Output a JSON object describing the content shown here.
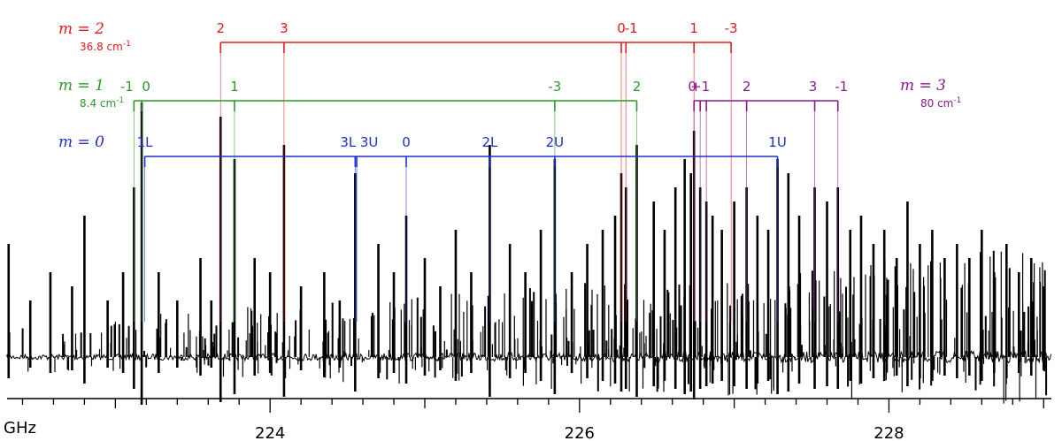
{
  "chart_data": {
    "type": "line",
    "title": "",
    "xlabel": "GHz",
    "ylabel": "",
    "xlim": [
      222.3,
      229.05
    ],
    "ylim": [
      -1.0,
      1.0
    ],
    "grid": false,
    "x_ticks": [
      {
        "value": 224,
        "label": "224"
      },
      {
        "value": 226,
        "label": "226"
      },
      {
        "value": 228,
        "label": "228"
      }
    ],
    "spectrum_lines": [
      {
        "x": 222.31,
        "y": 0.4
      },
      {
        "x": 222.45,
        "y": 0.2
      },
      {
        "x": 222.58,
        "y": 0.3
      },
      {
        "x": 222.72,
        "y": 0.25
      },
      {
        "x": 222.8,
        "y": 0.5
      },
      {
        "x": 222.95,
        "y": 0.2
      },
      {
        "x": 223.05,
        "y": 0.3
      },
      {
        "x": 223.12,
        "y": 0.6
      },
      {
        "x": 223.17,
        "y": 0.9
      },
      {
        "x": 223.28,
        "y": 0.3
      },
      {
        "x": 223.4,
        "y": 0.2
      },
      {
        "x": 223.55,
        "y": 0.35
      },
      {
        "x": 223.62,
        "y": 0.2
      },
      {
        "x": 223.68,
        "y": 0.85
      },
      {
        "x": 223.77,
        "y": 0.7
      },
      {
        "x": 223.9,
        "y": 0.35
      },
      {
        "x": 224.0,
        "y": 0.3
      },
      {
        "x": 224.09,
        "y": 0.75
      },
      {
        "x": 224.2,
        "y": 0.25
      },
      {
        "x": 224.35,
        "y": 0.3
      },
      {
        "x": 224.45,
        "y": 0.2
      },
      {
        "x": 224.55,
        "y": 0.65
      },
      {
        "x": 224.7,
        "y": 0.4
      },
      {
        "x": 224.8,
        "y": 0.3
      },
      {
        "x": 224.88,
        "y": 0.5
      },
      {
        "x": 225.0,
        "y": 0.35
      },
      {
        "x": 225.1,
        "y": 0.25
      },
      {
        "x": 225.2,
        "y": 0.45
      },
      {
        "x": 225.3,
        "y": 0.3
      },
      {
        "x": 225.42,
        "y": 0.75
      },
      {
        "x": 225.55,
        "y": 0.4
      },
      {
        "x": 225.65,
        "y": 0.3
      },
      {
        "x": 225.75,
        "y": 0.45
      },
      {
        "x": 225.84,
        "y": 0.7
      },
      {
        "x": 225.95,
        "y": 0.3
      },
      {
        "x": 226.05,
        "y": 0.4
      },
      {
        "x": 226.15,
        "y": 0.45
      },
      {
        "x": 226.23,
        "y": 0.5
      },
      {
        "x": 226.27,
        "y": 0.65
      },
      {
        "x": 226.3,
        "y": 0.6
      },
      {
        "x": 226.37,
        "y": 0.75
      },
      {
        "x": 226.48,
        "y": 0.55
      },
      {
        "x": 226.55,
        "y": 0.45
      },
      {
        "x": 226.62,
        "y": 0.6
      },
      {
        "x": 226.68,
        "y": 0.7
      },
      {
        "x": 226.72,
        "y": 0.65
      },
      {
        "x": 226.74,
        "y": 0.8
      },
      {
        "x": 226.78,
        "y": 0.6
      },
      {
        "x": 226.82,
        "y": 0.55
      },
      {
        "x": 226.86,
        "y": 0.5
      },
      {
        "x": 226.92,
        "y": 0.45
      },
      {
        "x": 227.0,
        "y": 0.55
      },
      {
        "x": 227.08,
        "y": 0.6
      },
      {
        "x": 227.15,
        "y": 0.5
      },
      {
        "x": 227.22,
        "y": 0.45
      },
      {
        "x": 227.28,
        "y": 0.7
      },
      {
        "x": 227.35,
        "y": 0.65
      },
      {
        "x": 227.42,
        "y": 0.5
      },
      {
        "x": 227.52,
        "y": 0.6
      },
      {
        "x": 227.6,
        "y": 0.55
      },
      {
        "x": 227.67,
        "y": 0.6
      },
      {
        "x": 227.75,
        "y": 0.45
      },
      {
        "x": 227.82,
        "y": 0.5
      },
      {
        "x": 227.9,
        "y": 0.4
      },
      {
        "x": 227.97,
        "y": 0.45
      },
      {
        "x": 228.05,
        "y": 0.35
      },
      {
        "x": 228.12,
        "y": 0.55
      },
      {
        "x": 228.2,
        "y": 0.4
      },
      {
        "x": 228.28,
        "y": 0.45
      },
      {
        "x": 228.36,
        "y": 0.35
      },
      {
        "x": 228.44,
        "y": 0.4
      },
      {
        "x": 228.52,
        "y": 0.35
      },
      {
        "x": 228.6,
        "y": 0.45
      },
      {
        "x": 228.68,
        "y": 0.3
      },
      {
        "x": 228.76,
        "y": 0.4
      },
      {
        "x": 228.84,
        "y": 0.3
      },
      {
        "x": 228.92,
        "y": 0.35
      },
      {
        "x": 229.0,
        "y": 0.25
      }
    ],
    "series": [
      {
        "name": "m = 2",
        "label": "m = 2",
        "energy": "36.8 cm",
        "energy_sup": "-1",
        "color": "#e31a1c",
        "lines": [
          {
            "label": "2",
            "x": 223.68
          },
          {
            "label": "3",
            "x": 224.09
          },
          {
            "label": "0",
            "x": 226.27
          },
          {
            "label": "-1",
            "x": 226.3
          },
          {
            "label": "1",
            "x": 226.74
          },
          {
            "label": "-3",
            "x": 226.98
          }
        ]
      },
      {
        "name": "m = 1",
        "label": "m = 1",
        "energy": "8.4 cm",
        "energy_sup": "-1",
        "color": "#2a9a2a",
        "lines": [
          {
            "label": "-1",
            "x": 223.12
          },
          {
            "label": "0",
            "x": 223.17
          },
          {
            "label": "1",
            "x": 223.77
          },
          {
            "label": "-3",
            "x": 225.84
          },
          {
            "label": "2",
            "x": 226.37
          }
        ]
      },
      {
        "name": "m = 0",
        "label": "m = 0",
        "color": "#1f2fd0",
        "lines": [
          {
            "label": "1L",
            "x": 223.19
          },
          {
            "label": "3L",
            "x": 224.55
          },
          {
            "label": "3U",
            "x": 224.56
          },
          {
            "label": "0",
            "x": 224.88
          },
          {
            "label": "2L",
            "x": 225.42
          },
          {
            "label": "2U",
            "x": 225.84
          },
          {
            "label": "1U",
            "x": 227.28
          }
        ]
      },
      {
        "name": "m = 3",
        "label": "m = 3",
        "energy": "80 cm",
        "energy_sup": "-1",
        "color": "#8b1a8b",
        "lines": [
          {
            "label": "0",
            "x": 226.74
          },
          {
            "label": "+1",
            "x": 226.78
          },
          {
            "label": "",
            "x": 226.82
          },
          {
            "label": "2",
            "x": 227.08
          },
          {
            "label": "3",
            "x": 227.52
          },
          {
            "label": "-1",
            "x": 227.67
          }
        ]
      }
    ]
  }
}
